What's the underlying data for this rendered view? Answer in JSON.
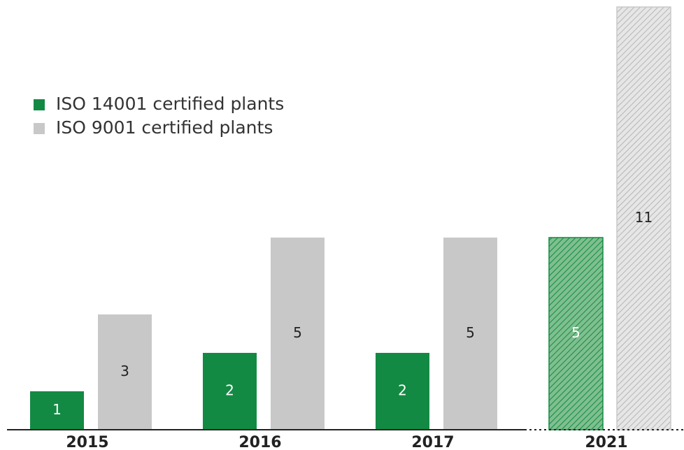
{
  "chart_data": {
    "type": "bar",
    "categories": [
      "2015",
      "2016",
      "2017",
      "2021"
    ],
    "series": [
      {
        "name": "ISO 14001 certified plants",
        "color": "#138a43",
        "values": [
          1,
          2,
          2,
          5
        ]
      },
      {
        "name": "ISO 9001 certified plants",
        "color": "#c8c8c8",
        "values": [
          3,
          5,
          5,
          11
        ]
      }
    ],
    "hatched": [
      false,
      false,
      false,
      true
    ],
    "ylim": [
      0,
      11
    ],
    "legend": "upper left"
  }
}
